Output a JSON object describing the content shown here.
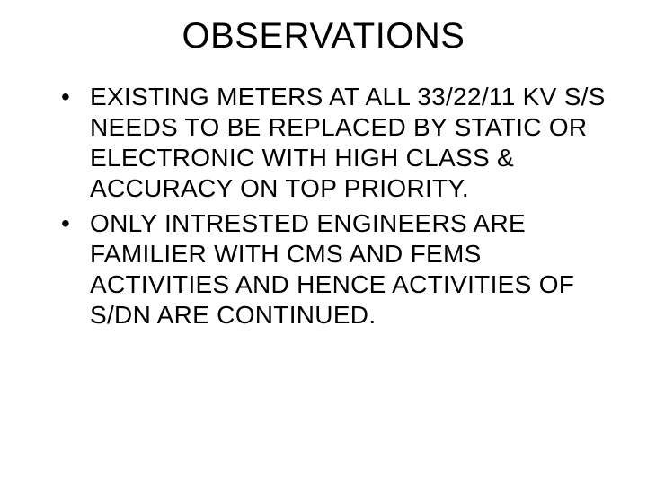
{
  "slide": {
    "title": "OBSERVATIONS",
    "bullets": [
      "EXISTING METERS AT ALL 33/22/11 KV S/S NEEDS TO BE REPLACED BY STATIC OR ELECTRONIC WITH HIGH CLASS & ACCURACY ON TOP PRIORITY.",
      "ONLY  INTRESTED  ENGINEERS  ARE  FAMILIER  WITH  CMS  AND  FEMS  ACTIVITIES AND HENCE ACTIVITIES OF S/DN  ARE  CONTINUED."
    ]
  },
  "styling": {
    "background_color": "#ffffff",
    "text_color": "#000000",
    "title_fontsize": 40,
    "body_fontsize": 28,
    "font_family": "Arial"
  }
}
